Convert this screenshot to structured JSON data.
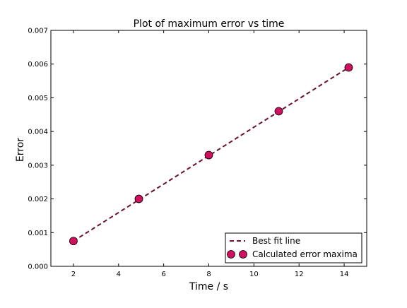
{
  "chart_data": {
    "type": "scatter",
    "title": "Plot of maximum error vs time",
    "xlabel": "Time / s",
    "ylabel": "Error",
    "xlim": [
      1,
      15
    ],
    "ylim": [
      0,
      0.007
    ],
    "xticks": [
      2,
      4,
      6,
      8,
      10,
      12,
      14
    ],
    "xtick_labels": [
      "2",
      "4",
      "6",
      "8",
      "10",
      "12",
      "14"
    ],
    "yticks": [
      0,
      0.001,
      0.002,
      0.003,
      0.004,
      0.005,
      0.006,
      0.007
    ],
    "ytick_labels": [
      "0.000",
      "0.001",
      "0.002",
      "0.003",
      "0.004",
      "0.005",
      "0.006",
      "0.007"
    ],
    "grid": false,
    "legend_position": "lower-right",
    "series": [
      {
        "name": "Best fit line",
        "kind": "line",
        "style": "dashed",
        "color": "#6b1030",
        "x": [
          2,
          14.2
        ],
        "y": [
          0.00075,
          0.0059
        ]
      },
      {
        "name": "Calculated error maxima",
        "kind": "scatter",
        "color": "#d0105e",
        "x": [
          2,
          4.9,
          8,
          11.1,
          14.2
        ],
        "y": [
          0.00075,
          0.002,
          0.0033,
          0.0046,
          0.0059
        ]
      }
    ]
  }
}
